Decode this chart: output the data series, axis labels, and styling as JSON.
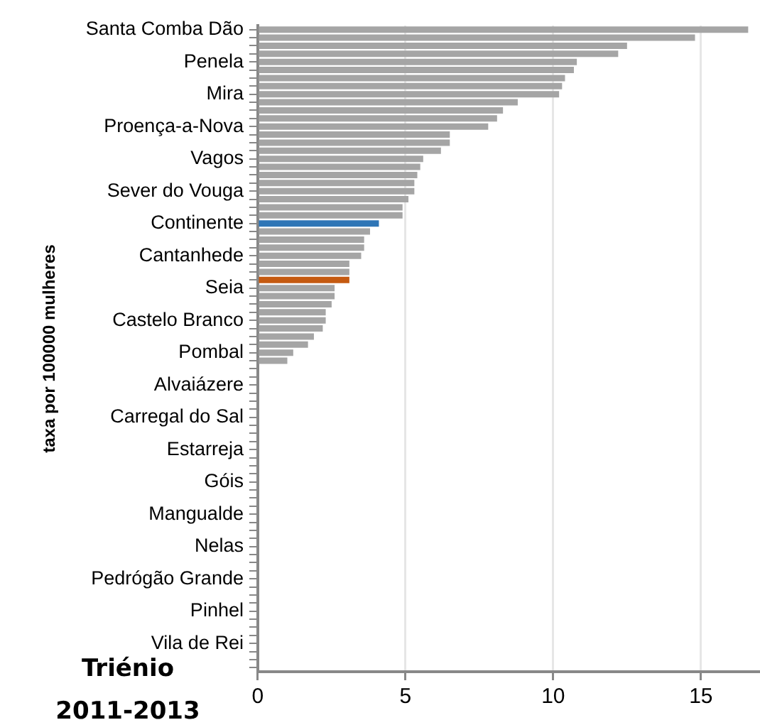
{
  "chart_data": {
    "type": "bar",
    "orientation": "horizontal",
    "ylabel": "taxa por 100000 mulheres",
    "annotations": [
      "Triénio 2011-2013"
    ],
    "categories": [
      "Santa Comba Dão",
      null,
      null,
      null,
      "Penela",
      null,
      null,
      null,
      "Mira",
      null,
      null,
      null,
      "Proença-a-Nova",
      null,
      null,
      null,
      "Vagos",
      null,
      null,
      null,
      "Sever do Vouga",
      null,
      null,
      null,
      "Continente",
      null,
      null,
      null,
      "Cantanhede",
      null,
      null,
      null,
      "Seia",
      null,
      null,
      null,
      "Castelo Branco",
      null,
      null,
      null,
      "Pombal",
      null,
      null,
      null,
      "Alvaiázere",
      null,
      null,
      null,
      "Carregal do Sal",
      null,
      null,
      null,
      "Estarreja",
      null,
      null,
      null,
      "Góis",
      null,
      null,
      null,
      "Mangualde",
      null,
      null,
      null,
      "Nelas",
      null,
      null,
      null,
      "Pedrógão Grande",
      null,
      null,
      null,
      "Pinhel",
      null,
      null,
      null,
      "Vila de Rei",
      null,
      null,
      null
    ],
    "values": [
      16.6,
      14.8,
      12.5,
      12.2,
      10.8,
      10.7,
      10.4,
      10.3,
      10.2,
      8.8,
      8.3,
      8.1,
      7.8,
      6.5,
      6.5,
      6.2,
      5.6,
      5.5,
      5.4,
      5.3,
      5.3,
      5.1,
      4.9,
      4.9,
      4.1,
      3.8,
      3.6,
      3.6,
      3.5,
      3.1,
      3.1,
      3.1,
      2.6,
      2.6,
      2.5,
      2.3,
      2.3,
      2.2,
      1.9,
      1.7,
      1.2,
      1.0,
      0,
      0,
      0,
      0,
      0,
      0,
      0,
      0,
      0,
      0,
      0,
      0,
      0,
      0,
      0,
      0,
      0,
      0,
      0,
      0,
      0,
      0,
      0,
      0,
      0,
      0,
      0,
      0,
      0,
      0,
      0,
      0,
      0,
      0,
      0,
      0,
      0,
      0
    ],
    "colors": [
      "#a5a5a5",
      "#a5a5a5",
      "#a5a5a5",
      "#a5a5a5",
      "#a5a5a5",
      "#a5a5a5",
      "#a5a5a5",
      "#a5a5a5",
      "#a5a5a5",
      "#a5a5a5",
      "#a5a5a5",
      "#a5a5a5",
      "#a5a5a5",
      "#a5a5a5",
      "#a5a5a5",
      "#a5a5a5",
      "#a5a5a5",
      "#a5a5a5",
      "#a5a5a5",
      "#a5a5a5",
      "#a5a5a5",
      "#a5a5a5",
      "#a5a5a5",
      "#a5a5a5",
      "#2e75b6",
      "#a5a5a5",
      "#a5a5a5",
      "#a5a5a5",
      "#a5a5a5",
      "#a5a5a5",
      "#a5a5a5",
      "#c55a11",
      "#a5a5a5",
      "#a5a5a5",
      "#a5a5a5",
      "#a5a5a5",
      "#a5a5a5",
      "#a5a5a5",
      "#a5a5a5",
      "#a5a5a5",
      "#a5a5a5",
      "#a5a5a5",
      "#a5a5a5",
      "#a5a5a5",
      "#a5a5a5",
      "#a5a5a5",
      "#a5a5a5",
      "#a5a5a5",
      "#a5a5a5",
      "#a5a5a5",
      "#a5a5a5",
      "#a5a5a5",
      "#a5a5a5",
      "#a5a5a5",
      "#a5a5a5",
      "#a5a5a5",
      "#a5a5a5",
      "#a5a5a5",
      "#a5a5a5",
      "#a5a5a5",
      "#a5a5a5",
      "#a5a5a5",
      "#a5a5a5",
      "#a5a5a5",
      "#a5a5a5",
      "#a5a5a5",
      "#a5a5a5",
      "#a5a5a5",
      "#a5a5a5",
      "#a5a5a5",
      "#a5a5a5",
      "#a5a5a5",
      "#a5a5a5",
      "#a5a5a5",
      "#a5a5a5",
      "#a5a5a5",
      "#a5a5a5",
      "#a5a5a5",
      "#a5a5a5",
      "#a5a5a5"
    ],
    "xlim": [
      0,
      17
    ],
    "xticks": [
      0,
      5,
      10,
      15
    ],
    "grid": "x"
  }
}
